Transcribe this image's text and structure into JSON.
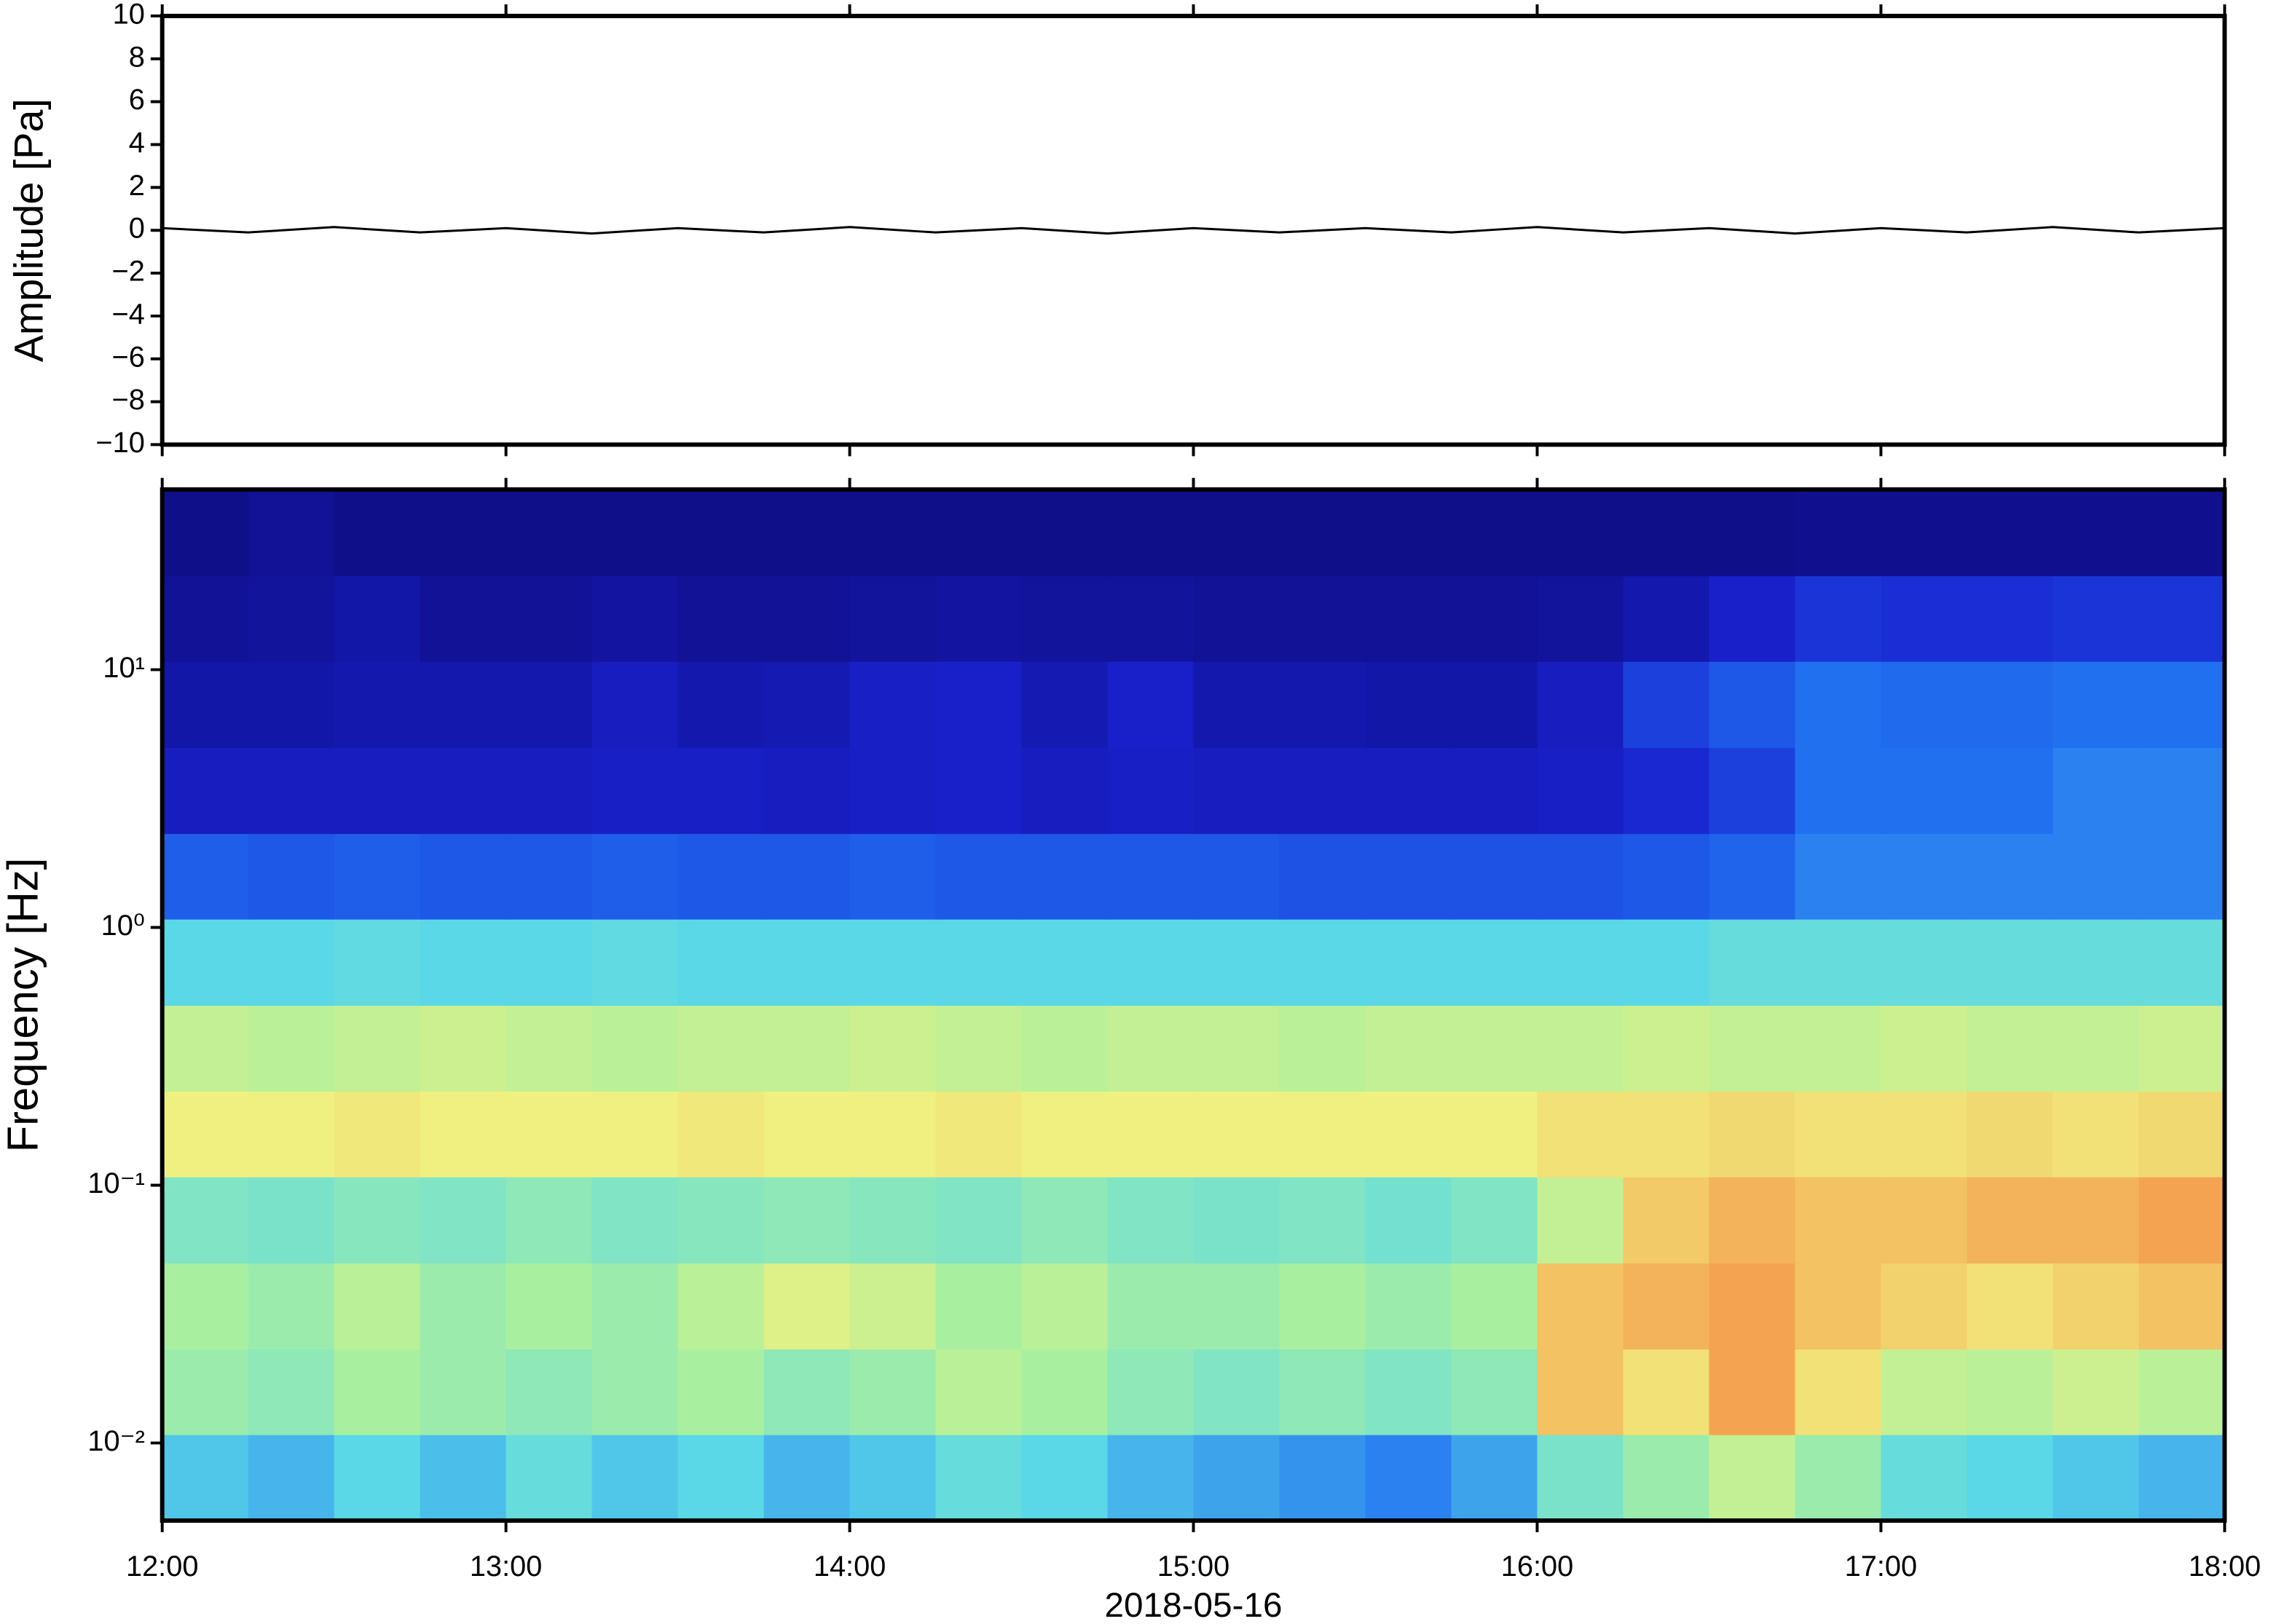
{
  "chart_data": [
    {
      "type": "line",
      "ylabel": "Amplitude [Pa]",
      "xlim": [
        12,
        18
      ],
      "xticks": [
        12,
        13,
        14,
        15,
        16,
        17,
        18
      ],
      "ylim": [
        -10,
        10
      ],
      "yticks": [
        {
          "value": -10,
          "label": "−10"
        },
        {
          "value": -8,
          "label": "−8"
        },
        {
          "value": -6,
          "label": "−6"
        },
        {
          "value": -4,
          "label": "−4"
        },
        {
          "value": -2,
          "label": "−2"
        },
        0,
        2,
        4,
        6,
        8,
        10
      ],
      "series": [
        {
          "color": "#000000",
          "x": [
            12,
            12.25,
            12.5,
            12.75,
            13,
            13.25,
            13.5,
            13.75,
            14,
            14.25,
            14.5,
            14.75,
            15,
            15.25,
            15.5,
            15.75,
            16,
            16.25,
            16.5,
            16.75,
            17,
            17.25,
            17.5,
            17.75,
            18
          ],
          "values": [
            0.1,
            -0.1,
            0.15,
            -0.1,
            0.1,
            -0.15,
            0.1,
            -0.1,
            0.15,
            -0.1,
            0.1,
            -0.15,
            0.1,
            -0.1,
            0.1,
            -0.1,
            0.15,
            -0.1,
            0.1,
            -0.15,
            0.1,
            -0.1,
            0.15,
            -0.1,
            0.1
          ]
        }
      ]
    },
    {
      "type": "heatmap",
      "xlabel": "2018-05-16",
      "ylabel": "Frequency [Hz]",
      "xlim": [
        12,
        18
      ],
      "xticks": [
        {
          "value": 12,
          "label": "12:00"
        },
        {
          "value": 13,
          "label": "13:00"
        },
        {
          "value": 14,
          "label": "14:00"
        },
        {
          "value": 15,
          "label": "15:00"
        },
        {
          "value": 16,
          "label": "16:00"
        },
        {
          "value": 17,
          "label": "17:00"
        },
        {
          "value": 18,
          "label": "18:00"
        }
      ],
      "ylim": [
        0.005,
        50
      ],
      "yscale": "log",
      "yticks": [
        {
          "value": 0.01,
          "label": "10⁻²"
        },
        {
          "value": 0.1,
          "label": "10⁻¹"
        },
        {
          "value": 1,
          "label": "10⁰"
        },
        {
          "value": 10,
          "label": "10¹"
        }
      ],
      "xbins": [
        12,
        12.25,
        12.5,
        12.75,
        13,
        13.25,
        13.5,
        13.75,
        14,
        14.25,
        14.5,
        14.75,
        15,
        15.25,
        15.5,
        15.75,
        16,
        16.25,
        16.5,
        16.75,
        17,
        17.25,
        17.5,
        17.75,
        18
      ],
      "ybins": [
        0.005,
        0.0108,
        0.0232,
        0.05,
        0.108,
        0.232,
        0.5,
        1.08,
        2.32,
        5,
        10.8,
        23.2,
        50
      ],
      "zlim": [
        0,
        100
      ],
      "colormap": [
        {
          "at": 0,
          "color": "#0c0a78"
        },
        {
          "at": 15,
          "color": "#1a22d0"
        },
        {
          "at": 28,
          "color": "#2070f0"
        },
        {
          "at": 40,
          "color": "#5ad8e8"
        },
        {
          "at": 52,
          "color": "#a8f0a0"
        },
        {
          "at": 60,
          "color": "#f0f080"
        },
        {
          "at": 70,
          "color": "#f4a450"
        },
        {
          "at": 85,
          "color": "#e04020"
        },
        {
          "at": 100,
          "color": "#a00000"
        }
      ],
      "values": [
        [
          38,
          36,
          40,
          37,
          42,
          38,
          40,
          36,
          38,
          42,
          40,
          36,
          34,
          32,
          30,
          34,
          45,
          50,
          55,
          50,
          42,
          40,
          38,
          36
        ],
        [
          50,
          48,
          52,
          50,
          48,
          50,
          52,
          48,
          50,
          54,
          52,
          48,
          46,
          48,
          46,
          48,
          66,
          62,
          70,
          62,
          55,
          54,
          56,
          54
        ],
        [
          52,
          50,
          54,
          50,
          52,
          50,
          54,
          58,
          56,
          52,
          54,
          50,
          50,
          52,
          50,
          52,
          66,
          68,
          70,
          66,
          64,
          62,
          64,
          66
        ],
        [
          46,
          45,
          47,
          46,
          48,
          46,
          47,
          48,
          47,
          46,
          48,
          46,
          45,
          46,
          44,
          46,
          55,
          65,
          68,
          66,
          66,
          68,
          68,
          70
        ],
        [
          60,
          60,
          61,
          60,
          60,
          60,
          61,
          60,
          60,
          61,
          60,
          60,
          60,
          60,
          60,
          60,
          62,
          62,
          63,
          62,
          62,
          63,
          62,
          63
        ],
        [
          55,
          54,
          55,
          56,
          55,
          54,
          55,
          55,
          56,
          55,
          54,
          55,
          55,
          54,
          55,
          55,
          55,
          56,
          55,
          55,
          56,
          55,
          55,
          56
        ],
        [
          40,
          40,
          41,
          40,
          40,
          41,
          40,
          40,
          40,
          40,
          40,
          40,
          40,
          40,
          40,
          40,
          40,
          40,
          42,
          42,
          42,
          42,
          42,
          42
        ],
        [
          25,
          24,
          25,
          24,
          24,
          25,
          24,
          24,
          25,
          24,
          24,
          24,
          24,
          23,
          23,
          23,
          23,
          24,
          26,
          30,
          30,
          30,
          30,
          30
        ],
        [
          12,
          12,
          12,
          12,
          12,
          13,
          13,
          12,
          13,
          14,
          12,
          13,
          12,
          12,
          12,
          12,
          13,
          16,
          20,
          28,
          28,
          28,
          30,
          30
        ],
        [
          8,
          8,
          9,
          9,
          9,
          12,
          9,
          10,
          13,
          14,
          10,
          14,
          9,
          9,
          8,
          8,
          12,
          20,
          24,
          28,
          27,
          27,
          28,
          28
        ],
        [
          5,
          6,
          8,
          5,
          5,
          7,
          5,
          5,
          6,
          7,
          6,
          6,
          5,
          5,
          5,
          5,
          6,
          9,
          14,
          18,
          17,
          17,
          18,
          18
        ],
        [
          3,
          5,
          3,
          3,
          3,
          3,
          3,
          3,
          3,
          3,
          3,
          3,
          3,
          3,
          3,
          3,
          3,
          3,
          3,
          4,
          4,
          4,
          4,
          4
        ]
      ]
    }
  ]
}
